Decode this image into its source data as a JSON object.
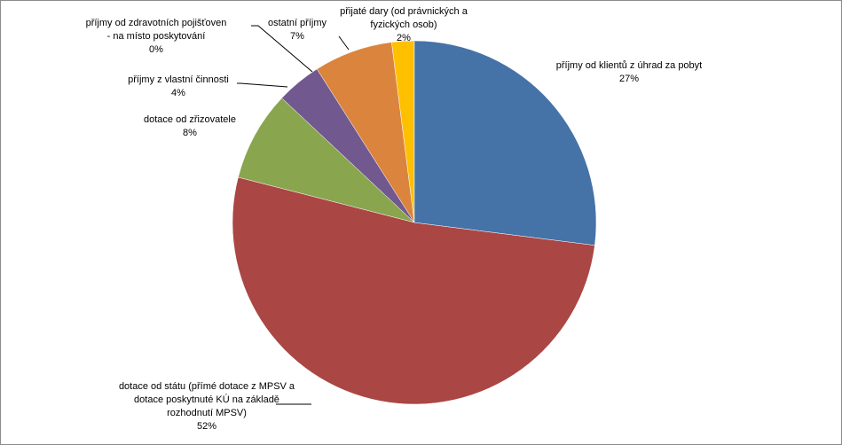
{
  "chart_data": {
    "type": "pie",
    "categories": [
      "příjmy od klientů z úhrad za pobyt",
      "dotace od státu (přímé dotace z MPSV a dotace poskytnuté KÚ na základě rozhodnutí MPSV)",
      "dotace od zřizovatele",
      "příjmy z vlastní činnosti",
      "příjmy od zdravotních pojišťoven - na místo poskytování",
      "ostatní příjmy",
      "přijaté dary (od právnických a fyzických osob)"
    ],
    "values": [
      27,
      52,
      8,
      4,
      0,
      7,
      2
    ],
    "value_labels": [
      "27%",
      "52%",
      "8%",
      "4%",
      "0%",
      "7%",
      "2%"
    ],
    "colors": [
      "#4572a7",
      "#aa4643",
      "#89a54e",
      "#71588f",
      "#000000",
      "#db843d",
      "#ffc000"
    ]
  }
}
